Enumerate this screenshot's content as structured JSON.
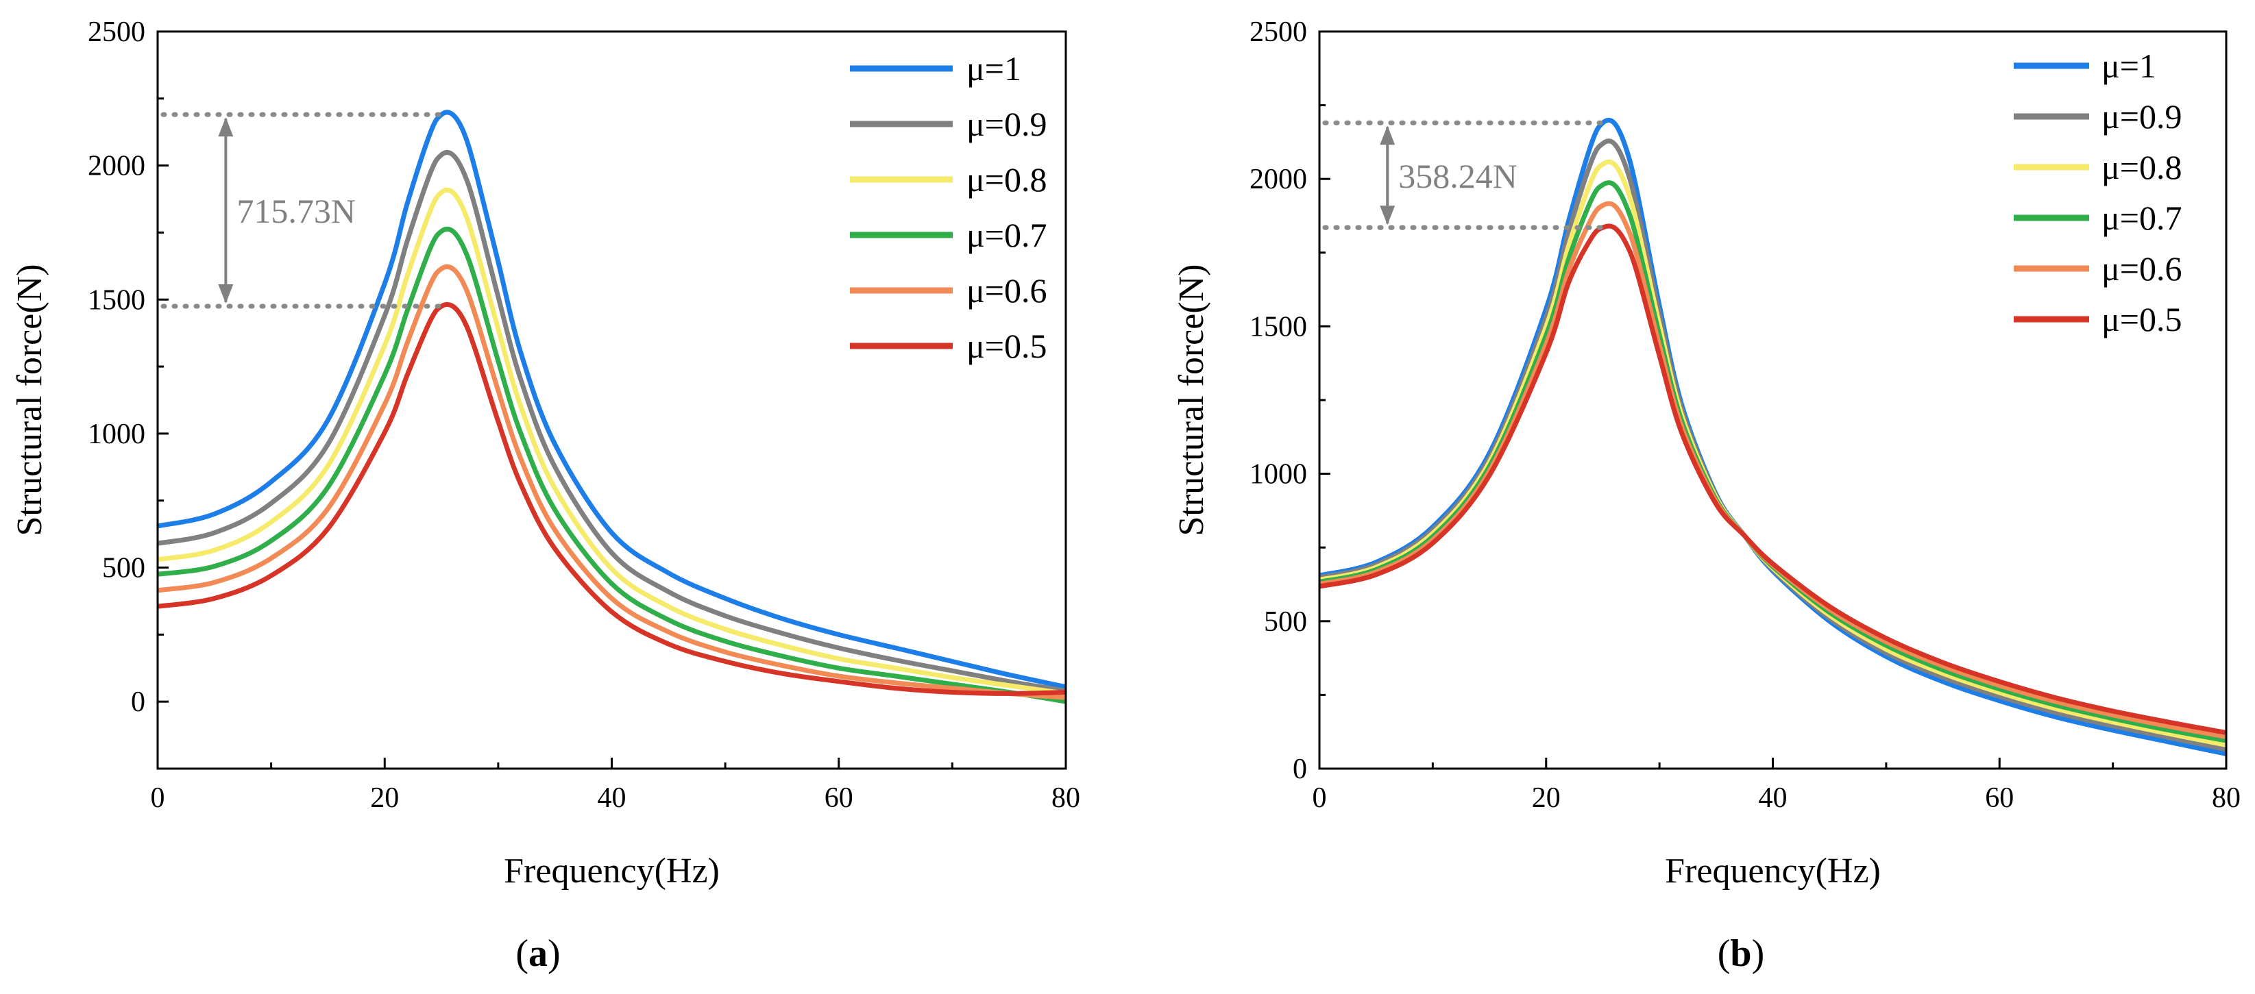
{
  "chart_data": [
    {
      "type": "line",
      "panel_label": "a",
      "xlabel": "Frequency(Hz)",
      "ylabel": "Structural force(N)",
      "xlim": [
        0,
        80
      ],
      "ylim": [
        -250,
        2500
      ],
      "xticks": [
        0,
        20,
        40,
        60,
        80
      ],
      "yticks": [
        0,
        500,
        1000,
        1500,
        2000,
        2500
      ],
      "legend_position": "top-right",
      "x": [
        0,
        5,
        10,
        15,
        20,
        22,
        24,
        25,
        26,
        27,
        28,
        30,
        32,
        35,
        40,
        45,
        50,
        55,
        60,
        65,
        70,
        75,
        80
      ],
      "series": [
        {
          "name": "μ=1",
          "color": "#1e7ee8",
          "values": [
            655,
            700,
            820,
            1050,
            1560,
            1860,
            2120,
            2190,
            2190,
            2120,
            1980,
            1640,
            1300,
            960,
            630,
            480,
            385,
            310,
            250,
            200,
            150,
            100,
            55
          ]
        },
        {
          "name": "μ=0.9",
          "color": "#808080",
          "values": [
            590,
            630,
            740,
            960,
            1440,
            1720,
            1970,
            2040,
            2040,
            1970,
            1840,
            1510,
            1200,
            875,
            555,
            410,
            320,
            255,
            200,
            155,
            115,
            75,
            40
          ]
        },
        {
          "name": "μ=0.8",
          "color": "#f5ea6a",
          "values": [
            530,
            565,
            670,
            880,
            1330,
            1590,
            1830,
            1900,
            1900,
            1830,
            1700,
            1390,
            1100,
            795,
            495,
            355,
            270,
            210,
            160,
            125,
            90,
            60,
            30
          ]
        },
        {
          "name": "μ=0.7",
          "color": "#2fae4a",
          "values": [
            475,
            505,
            600,
            800,
            1220,
            1460,
            1690,
            1755,
            1755,
            1690,
            1570,
            1270,
            1000,
            715,
            440,
            305,
            225,
            170,
            125,
            95,
            65,
            35,
            0
          ]
        },
        {
          "name": "μ=0.6",
          "color": "#f28a56",
          "values": [
            415,
            445,
            535,
            720,
            1110,
            1340,
            1555,
            1615,
            1615,
            1555,
            1440,
            1160,
            905,
            640,
            385,
            260,
            185,
            135,
            95,
            70,
            50,
            30,
            15
          ]
        },
        {
          "name": "μ=0.5",
          "color": "#d63427",
          "values": [
            355,
            385,
            470,
            645,
            1005,
            1220,
            1420,
            1475,
            1475,
            1420,
            1310,
            1045,
            810,
            570,
            335,
            215,
            150,
            105,
            75,
            50,
            35,
            30,
            35
          ]
        }
      ],
      "annotation": {
        "text": "715.73N",
        "upper_value": 2190,
        "lower_value": 1475,
        "arrow_x": 6
      }
    },
    {
      "type": "line",
      "panel_label": "b",
      "xlabel": "Frequency(Hz)",
      "ylabel": "Structural force(N)",
      "xlim": [
        0,
        80
      ],
      "ylim": [
        0,
        2500
      ],
      "xticks": [
        0,
        20,
        40,
        60,
        80
      ],
      "yticks": [
        0,
        500,
        1000,
        1500,
        2000,
        2500
      ],
      "legend_position": "top-right",
      "x": [
        0,
        5,
        10,
        15,
        20,
        22,
        24,
        25,
        26,
        27,
        28,
        30,
        32,
        35,
        37.5,
        40,
        45,
        50,
        55,
        60,
        65,
        70,
        75,
        80
      ],
      "series": [
        {
          "name": "μ=1",
          "color": "#1e7ee8",
          "values": [
            655,
            700,
            820,
            1070,
            1560,
            1860,
            2120,
            2190,
            2190,
            2110,
            1960,
            1570,
            1230,
            930,
            790,
            670,
            500,
            380,
            295,
            230,
            175,
            130,
            90,
            50
          ]
        },
        {
          "name": "μ=0.9",
          "color": "#808080",
          "values": [
            648,
            692,
            810,
            1055,
            1530,
            1820,
            2060,
            2120,
            2120,
            2045,
            1905,
            1540,
            1215,
            925,
            790,
            675,
            510,
            393,
            310,
            245,
            190,
            145,
            105,
            65
          ]
        },
        {
          "name": "μ=0.8",
          "color": "#f5ea6a",
          "values": [
            640,
            683,
            798,
            1040,
            1500,
            1775,
            1995,
            2050,
            2050,
            1980,
            1850,
            1505,
            1195,
            920,
            790,
            680,
            520,
            405,
            323,
            258,
            203,
            158,
            118,
            80
          ]
        },
        {
          "name": "μ=0.7",
          "color": "#2fae4a",
          "values": [
            633,
            675,
            787,
            1025,
            1470,
            1730,
            1930,
            1980,
            1980,
            1915,
            1795,
            1470,
            1175,
            912,
            790,
            685,
            530,
            418,
            335,
            270,
            215,
            170,
            130,
            95
          ]
        },
        {
          "name": "μ=0.6",
          "color": "#f28a56",
          "values": [
            626,
            667,
            776,
            1010,
            1440,
            1690,
            1865,
            1910,
            1910,
            1850,
            1740,
            1435,
            1155,
            905,
            790,
            690,
            540,
            430,
            348,
            282,
            227,
            182,
            143,
            108
          ]
        },
        {
          "name": "μ=0.5",
          "color": "#d63427",
          "values": [
            618,
            658,
            765,
            995,
            1410,
            1650,
            1800,
            1835,
            1835,
            1785,
            1685,
            1400,
            1135,
            897,
            790,
            695,
            550,
            442,
            360,
            295,
            240,
            195,
            157,
            122
          ]
        }
      ],
      "annotation": {
        "text": "358.24N",
        "upper_value": 2190,
        "lower_value": 1835,
        "arrow_x": 6
      }
    }
  ]
}
